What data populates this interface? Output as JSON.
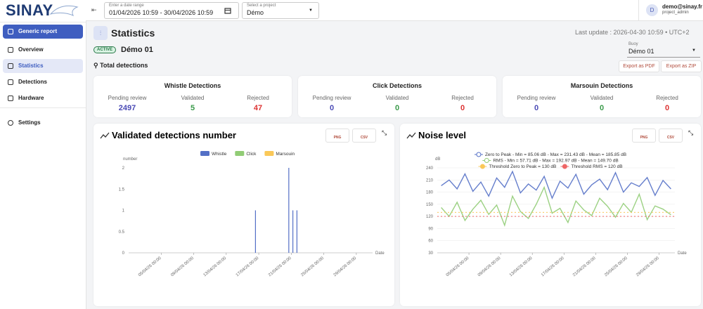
{
  "sidebar": {
    "logo": "SINAY",
    "menu": [
      "Generic report",
      "Overview",
      "Statistics",
      "Detections",
      "Hardware"
    ],
    "settings": "Settings"
  },
  "topbar": {
    "date_label": "Enter a date range",
    "date_range": "01/04/2026 10:59 - 30/04/2026 10:59",
    "project_label": "Select a project",
    "project": "Démo",
    "avatar": "D",
    "user_email": "demo@sinay.fr",
    "user_role": "project_admin"
  },
  "page": {
    "title": "Statistics",
    "last_update": "Last update : 2026-04-30 10:59 • UTC+2",
    "status": "ACTIVE",
    "project_name": "Démo 01",
    "buoy_label": "Buoy",
    "buoy": "Démo 01",
    "section": "Total detections",
    "export_pdf": "Export as PDF",
    "export_zip": "Export as ZIP"
  },
  "detection_cards": [
    {
      "title": "Whistle Detections",
      "labels": [
        "Pending review",
        "Validated",
        "Rejected"
      ],
      "values": [
        2497,
        5,
        47
      ]
    },
    {
      "title": "Click Detections",
      "labels": [
        "Pending review",
        "Validated",
        "Rejected"
      ],
      "values": [
        0,
        0,
        0
      ]
    },
    {
      "title": "Marsouin Detections",
      "labels": [
        "Pending review",
        "Validated",
        "Rejected"
      ],
      "values": [
        0,
        0,
        0
      ]
    }
  ],
  "chart_buttons": [
    "PNG",
    "CSV"
  ],
  "chart_data": [
    {
      "type": "bar",
      "title": "Validated detections number",
      "y_label": "number",
      "x_label": "Date",
      "x": [
        16.7,
        20.8,
        21.3,
        21.8
      ],
      "series": [
        {
          "name": "Whistle",
          "color": "#5470c6",
          "values": [
            1,
            2,
            1,
            1
          ]
        },
        {
          "name": "Click",
          "color": "#91cc75",
          "values": [
            0,
            0,
            0,
            0
          ]
        },
        {
          "name": "Marsouin",
          "color": "#fac858",
          "values": [
            0,
            0,
            0,
            0
          ]
        }
      ],
      "xlim": [
        1,
        31
      ],
      "xticks": [
        {
          "value": 5,
          "label": "05/04/26 00:00"
        },
        {
          "value": 9,
          "label": "09/04/26 00:00"
        },
        {
          "value": 13,
          "label": "13/04/26 00:00"
        },
        {
          "value": 17,
          "label": "17/04/26 00:00"
        },
        {
          "value": 21,
          "label": "21/04/26 00:00"
        },
        {
          "value": 25,
          "label": "25/04/26 00:00"
        },
        {
          "value": 29,
          "label": "29/04/26 00:00"
        }
      ],
      "ylim": [
        0,
        2
      ],
      "yticks": [
        0,
        0.5,
        1,
        1.5,
        2
      ]
    },
    {
      "type": "line",
      "title": "Noise level",
      "y_label": "dB",
      "x_label": "Date",
      "x": [
        1.5,
        2.5,
        3.5,
        4.5,
        5.5,
        6.5,
        7.5,
        8.5,
        9.5,
        10.5,
        11.5,
        12.5,
        13.5,
        14.5,
        15.5,
        16.5,
        17.5,
        18.5,
        19.5,
        20.5,
        21.5,
        22.5,
        23.5,
        24.5,
        25.5,
        26.5,
        27.5,
        28.5,
        29.5,
        30.5
      ],
      "series": [
        {
          "name": "Zero to Peak - Min = 85.06 dB - Max = 231.43 dB - Mean = 185.85 dB",
          "color": "#5470c6",
          "values": [
            196,
            210,
            188,
            225,
            182,
            205,
            170,
            215,
            192,
            231,
            178,
            200,
            185,
            219,
            165,
            207,
            190,
            224,
            175,
            198,
            212,
            186,
            228,
            180,
            203,
            194,
            216,
            172,
            209,
            188
          ]
        },
        {
          "name": "RMS - Min = 57.71 dB - Max = 192.97 dB - Mean = 149.70 dB",
          "color": "#91cc75",
          "values": [
            142,
            120,
            155,
            110,
            138,
            160,
            125,
            148,
            98,
            170,
            132,
            115,
            150,
            192,
            128,
            140,
            105,
            158,
            136,
            122,
            165,
            145,
            118,
            152,
            130,
            175,
            112,
            146,
            138,
            124
          ]
        },
        {
          "name": "Threshold Zero to Peak = 130 dB",
          "color": "#fac858",
          "value": 130
        },
        {
          "name": "Threshold RMS = 120 dB",
          "color": "#ee6666",
          "value": 120
        }
      ],
      "xlim": [
        1,
        31
      ],
      "xticks": [
        {
          "value": 5,
          "label": "05/04/26 00:00"
        },
        {
          "value": 9,
          "label": "09/04/26 00:00"
        },
        {
          "value": 13,
          "label": "13/04/26 00:00"
        },
        {
          "value": 17,
          "label": "17/04/26 00:00"
        },
        {
          "value": 21,
          "label": "21/04/26 00:00"
        },
        {
          "value": 25,
          "label": "25/04/26 00:00"
        },
        {
          "value": 29,
          "label": "29/04/26 00:00"
        }
      ],
      "ylim": [
        30,
        240
      ],
      "yticks": [
        30,
        60,
        90,
        120,
        150,
        180,
        210,
        240
      ]
    }
  ]
}
